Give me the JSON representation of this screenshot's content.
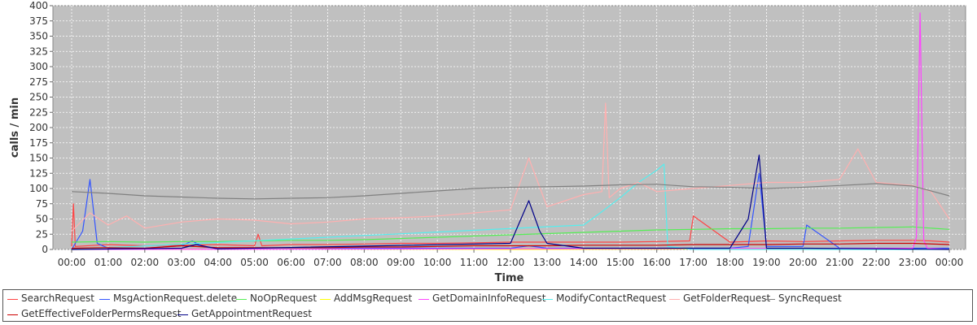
{
  "chart_data": {
    "type": "line",
    "title": "",
    "xlabel": "Time",
    "ylabel": "calls / min",
    "ylim": [
      0,
      400
    ],
    "yticks": [
      0,
      25,
      50,
      75,
      100,
      125,
      150,
      175,
      200,
      225,
      250,
      275,
      300,
      325,
      350,
      375,
      400
    ],
    "xlim": [
      0,
      24
    ],
    "xtick_labels": [
      "00:00",
      "01:00",
      "02:00",
      "03:00",
      "04:00",
      "05:00",
      "06:00",
      "07:00",
      "08:00",
      "09:00",
      "10:00",
      "11:00",
      "12:00",
      "13:00",
      "14:00",
      "15:00",
      "16:00",
      "17:00",
      "18:00",
      "19:00",
      "20:00",
      "21:00",
      "22:00",
      "23:00",
      "00:00"
    ],
    "grid": true,
    "legend_position": "bottom",
    "plot_background": "#c0c0c0",
    "series": [
      {
        "name": "SearchRequest",
        "color": "#ff4444",
        "x": [
          0,
          0.05,
          0.1,
          1,
          2,
          3,
          4,
          5,
          5.1,
          5.2,
          6,
          7,
          8,
          9,
          10,
          11,
          12,
          13,
          14,
          15,
          16,
          16.9,
          17,
          18,
          19,
          20,
          21,
          22,
          23,
          23.5,
          24
        ],
        "y": [
          5,
          75,
          5,
          8,
          6,
          7,
          8,
          6,
          25,
          6,
          8,
          8,
          9,
          10,
          10,
          11,
          12,
          12,
          12,
          12,
          13,
          14,
          55,
          12,
          14,
          13,
          14,
          15,
          15,
          14,
          12
        ]
      },
      {
        "name": "MsgActionRequest.delete",
        "color": "#3355ff",
        "x": [
          0,
          0.3,
          0.5,
          0.7,
          1,
          2,
          3,
          3.3,
          3.6,
          4,
          5,
          6,
          7,
          8,
          9,
          10,
          11,
          12,
          12.5,
          13,
          14,
          15,
          16,
          17,
          18,
          18.5,
          18.8,
          19,
          20,
          20.1,
          21,
          22,
          23,
          24
        ],
        "y": [
          0,
          30,
          115,
          10,
          2,
          2,
          6,
          14,
          4,
          2,
          2,
          2,
          2,
          2,
          2,
          2,
          2,
          2,
          6,
          2,
          2,
          2,
          2,
          2,
          2,
          5,
          125,
          5,
          5,
          40,
          2,
          2,
          2,
          2
        ]
      },
      {
        "name": "NoOpRequest",
        "color": "#55ee55",
        "x": [
          0,
          1,
          2,
          3,
          4,
          5,
          6,
          7,
          8,
          9,
          10,
          11,
          12,
          13,
          14,
          15,
          16,
          17,
          18,
          19,
          20,
          21,
          22,
          23,
          24
        ],
        "y": [
          12,
          13,
          12,
          13,
          13,
          14,
          15,
          15,
          16,
          18,
          20,
          22,
          24,
          26,
          28,
          30,
          32,
          33,
          34,
          34,
          35,
          35,
          36,
          37,
          33
        ]
      },
      {
        "name": "AddMsgRequest",
        "color": "#ffff00",
        "x": [
          0,
          6,
          12,
          18,
          24
        ],
        "y": [
          0,
          1,
          0,
          1,
          0
        ]
      },
      {
        "name": "GetDomainInfoRequest",
        "color": "#ff44ff",
        "x": [
          0,
          23.0,
          23.1,
          23.2,
          23.3,
          23.4,
          24
        ],
        "y": [
          0,
          2,
          20,
          388,
          15,
          2,
          0
        ]
      },
      {
        "name": "ModifyContactRequest",
        "color": "#55eeee",
        "x": [
          0,
          14,
          14.5,
          15,
          15.5,
          16,
          16.2,
          16.3,
          17,
          24
        ],
        "y": [
          0,
          40,
          62,
          85,
          110,
          130,
          140,
          5,
          0,
          0
        ]
      },
      {
        "name": "GetFolderRequest",
        "color": "#ffb0b0",
        "x": [
          0,
          0.5,
          1,
          1.5,
          2,
          3,
          4,
          5,
          6,
          7,
          8,
          9,
          10,
          11,
          12,
          12.5,
          13,
          13.5,
          14,
          14.5,
          14.6,
          14.7,
          15,
          15.5,
          16,
          17,
          18,
          19,
          20,
          21,
          21.5,
          22,
          23,
          23.5,
          24
        ],
        "y": [
          30,
          60,
          40,
          55,
          35,
          45,
          50,
          48,
          42,
          45,
          50,
          52,
          55,
          60,
          65,
          150,
          70,
          80,
          90,
          95,
          240,
          85,
          100,
          110,
          95,
          100,
          105,
          110,
          110,
          115,
          165,
          110,
          105,
          95,
          50
        ]
      },
      {
        "name": "SyncRequest",
        "color": "#808080",
        "x": [
          0,
          1,
          2,
          3,
          4,
          5,
          6,
          7,
          8,
          9,
          10,
          11,
          12,
          13,
          14,
          15,
          16,
          17,
          18,
          19,
          20,
          21,
          22,
          23,
          24
        ],
        "y": [
          95,
          92,
          88,
          86,
          84,
          83,
          84,
          85,
          88,
          92,
          96,
          100,
          102,
          103,
          104,
          106,
          107,
          103,
          102,
          100,
          102,
          105,
          108,
          104,
          88
        ]
      },
      {
        "name": "GetEffectiveFolderPermsRequest",
        "color": "#cc0000",
        "x": [
          0,
          1,
          2,
          3,
          4,
          5,
          6,
          7,
          8,
          9,
          10,
          11,
          12,
          13,
          14,
          15,
          16,
          17,
          18,
          19,
          20,
          21,
          22,
          23,
          24
        ],
        "y": [
          2,
          3,
          2,
          6,
          3,
          3,
          3,
          3,
          4,
          4,
          5,
          6,
          6,
          6,
          7,
          7,
          7,
          8,
          8,
          8,
          9,
          9,
          10,
          10,
          8
        ]
      },
      {
        "name": "GetAppointmentRequest",
        "color": "#000088",
        "x": [
          0,
          3,
          3.4,
          4,
          12,
          12.5,
          12.8,
          13,
          14,
          18,
          18.5,
          18.8,
          19,
          20,
          24
        ],
        "y": [
          0,
          2,
          8,
          1,
          10,
          80,
          30,
          10,
          2,
          2,
          50,
          155,
          2,
          2,
          0
        ]
      }
    ]
  }
}
